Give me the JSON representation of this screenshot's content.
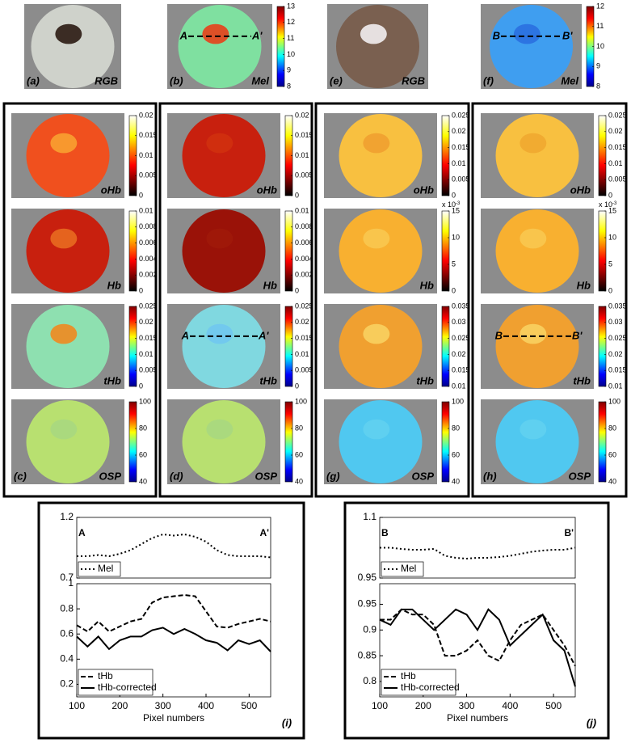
{
  "top_images": [
    {
      "label": "(a)",
      "channel": "RGB",
      "fill": "#cfd2cb",
      "spot": "#2a1a12"
    },
    {
      "label": "(b)",
      "channel": "Mel",
      "fill": "#7fe0a0",
      "spot": "#e8401a",
      "colormap": "jet",
      "ticks": [
        13,
        12,
        11,
        10,
        9,
        8
      ],
      "line": [
        "A",
        "A'"
      ]
    },
    {
      "label": "(e)",
      "channel": "RGB",
      "fill": "#7a6050",
      "spot": "#f2eef0"
    },
    {
      "label": "(f)",
      "channel": "Mel",
      "fill": "#3f9ef0",
      "spot": "#2a6fe0",
      "colormap": "jet",
      "ticks": [
        12,
        11,
        10,
        9,
        8
      ],
      "line": [
        "B",
        "B'"
      ]
    }
  ],
  "groups": [
    {
      "label": "(c)",
      "maps": [
        {
          "channel": "oHb",
          "fill": "#f0501e",
          "spot": "#f8a030",
          "colormap": "hot",
          "ticks": [
            0.02,
            0.015,
            0.01,
            0.005,
            0
          ]
        },
        {
          "channel": "Hb",
          "fill": "#c8200e",
          "spot": "#e86a20",
          "colormap": "hot",
          "ticks": [
            0.01,
            0.008,
            0.006,
            0.004,
            0.002,
            0
          ]
        },
        {
          "channel": "tHb",
          "fill": "#8ee0b0",
          "spot": "#f08a20",
          "colormap": "jet",
          "ticks": [
            0.025,
            0.02,
            0.015,
            0.01,
            0.005,
            0
          ]
        },
        {
          "channel": "OSP",
          "fill": "#b8e070",
          "spot": "#a8d880",
          "colormap": "jet",
          "ticks": [
            100,
            80,
            60,
            40
          ]
        }
      ]
    },
    {
      "label": "(d)",
      "maps": [
        {
          "channel": "oHb",
          "fill": "#c8200e",
          "spot": "#d0300e",
          "colormap": "hot",
          "ticks": [
            0.02,
            0.015,
            0.01,
            0.005,
            0
          ]
        },
        {
          "channel": "Hb",
          "fill": "#9a1208",
          "spot": "#a01a0a",
          "colormap": "hot",
          "ticks": [
            0.01,
            0.008,
            0.006,
            0.004,
            0.002,
            0
          ]
        },
        {
          "channel": "tHb",
          "fill": "#80d8e0",
          "spot": "#70c8f0",
          "colormap": "jet",
          "ticks": [
            0.025,
            0.02,
            0.015,
            0.01,
            0.005,
            0
          ],
          "line": [
            "A",
            "A'"
          ]
        },
        {
          "channel": "OSP",
          "fill": "#b8e070",
          "spot": "#a8d880",
          "colormap": "jet",
          "ticks": [
            100,
            80,
            60,
            40
          ]
        }
      ]
    },
    {
      "label": "(g)",
      "maps": [
        {
          "channel": "oHb",
          "fill": "#f8c040",
          "spot": "#f0a030",
          "colormap": "hot",
          "ticks": [
            0.025,
            0.02,
            0.015,
            0.01,
            0.005,
            0
          ]
        },
        {
          "channel": "Hb",
          "fill": "#f8b030",
          "spot": "#f8c850",
          "colormap": "hot",
          "ticks": [
            15,
            10,
            5,
            0
          ],
          "scale": {
            "base": "x 10",
            "exponent": "-3"
          }
        },
        {
          "channel": "tHb",
          "fill": "#f0a030",
          "spot": "#f8d060",
          "colormap": "jet",
          "ticks": [
            0.035,
            0.03,
            0.025,
            0.02,
            0.015,
            0.01
          ]
        },
        {
          "channel": "OSP",
          "fill": "#50c8f0",
          "spot": "#60d0f0",
          "colormap": "jet",
          "ticks": [
            100,
            80,
            60,
            40
          ]
        }
      ]
    },
    {
      "label": "(h)",
      "maps": [
        {
          "channel": "oHb",
          "fill": "#f8c040",
          "spot": "#f0a830",
          "colormap": "hot",
          "ticks": [
            0.025,
            0.02,
            0.015,
            0.01,
            0.005,
            0
          ]
        },
        {
          "channel": "Hb",
          "fill": "#f8b030",
          "spot": "#f8c850",
          "colormap": "hot",
          "ticks": [
            15,
            10,
            5,
            0
          ],
          "scale": {
            "base": "x 10",
            "exponent": "-3"
          }
        },
        {
          "channel": "tHb",
          "fill": "#f0a030",
          "spot": "#f8d060",
          "colormap": "jet",
          "ticks": [
            0.035,
            0.03,
            0.025,
            0.02,
            0.015,
            0.01
          ],
          "line": [
            "B",
            "B'"
          ]
        },
        {
          "channel": "OSP",
          "fill": "#50c8f0",
          "spot": "#60d0f0",
          "colormap": "jet",
          "ticks": [
            100,
            80,
            60,
            40
          ]
        }
      ]
    }
  ],
  "chart_data": [
    {
      "type": "line",
      "x": [
        100,
        125,
        150,
        175,
        200,
        225,
        250,
        275,
        300,
        325,
        350,
        375,
        400,
        425,
        450,
        475,
        500,
        525,
        550
      ],
      "xlim": [
        100,
        550
      ],
      "ylim": [
        0.7,
        1.2
      ],
      "yticks": [
        0.7,
        1.2
      ],
      "legend": "lower left",
      "annotations": [
        "A",
        "A'"
      ],
      "series": [
        {
          "name": "Mel",
          "color": "#000000",
          "style": "dotted",
          "values": [
            0.88,
            0.88,
            0.89,
            0.88,
            0.9,
            0.93,
            0.98,
            1.03,
            1.06,
            1.05,
            1.06,
            1.04,
            1.0,
            0.93,
            0.89,
            0.88,
            0.88,
            0.88,
            0.87
          ]
        }
      ]
    },
    {
      "type": "line",
      "x": [
        100,
        125,
        150,
        175,
        200,
        225,
        250,
        275,
        300,
        325,
        350,
        375,
        400,
        425,
        450,
        475,
        500,
        525,
        550
      ],
      "xlim": [
        100,
        550
      ],
      "ylim": [
        0.1,
        1
      ],
      "yticks": [
        0.2,
        0.4,
        0.6,
        0.8,
        1
      ],
      "xticks": [
        100,
        200,
        300,
        400,
        500
      ],
      "xlabel": "Pixel numbers",
      "panel_label": "(i)",
      "legend": "lower left",
      "series": [
        {
          "name": "tHb",
          "color": "#000000",
          "style": "dashed",
          "values": [
            0.67,
            0.62,
            0.7,
            0.62,
            0.66,
            0.7,
            0.72,
            0.85,
            0.89,
            0.9,
            0.91,
            0.9,
            0.78,
            0.66,
            0.65,
            0.68,
            0.7,
            0.72,
            0.7
          ]
        },
        {
          "name": "tHb-corrected",
          "color": "#000000",
          "style": "solid",
          "values": [
            0.58,
            0.5,
            0.58,
            0.48,
            0.55,
            0.58,
            0.58,
            0.63,
            0.65,
            0.6,
            0.64,
            0.6,
            0.55,
            0.53,
            0.47,
            0.55,
            0.52,
            0.55,
            0.46
          ]
        }
      ]
    },
    {
      "type": "line",
      "x": [
        100,
        125,
        150,
        175,
        200,
        225,
        250,
        275,
        300,
        325,
        350,
        375,
        400,
        425,
        450,
        475,
        500,
        525,
        550
      ],
      "xlim": [
        100,
        550
      ],
      "ylim": [
        0.95,
        1.1
      ],
      "yticks": [
        0.95,
        1.1
      ],
      "legend": "lower left",
      "annotations": [
        "B",
        "B'"
      ],
      "series": [
        {
          "name": "Mel",
          "color": "#000000",
          "style": "dotted",
          "values": [
            1.025,
            1.025,
            1.022,
            1.02,
            1.02,
            1.022,
            1.005,
            1.0,
            0.998,
            1.0,
            1.0,
            1.002,
            1.005,
            1.01,
            1.015,
            1.018,
            1.02,
            1.02,
            1.025
          ]
        }
      ]
    },
    {
      "type": "line",
      "x": [
        100,
        125,
        150,
        175,
        200,
        225,
        250,
        275,
        300,
        325,
        350,
        375,
        400,
        425,
        450,
        475,
        500,
        525,
        550
      ],
      "xlim": [
        100,
        550
      ],
      "ylim": [
        0.77,
        0.99
      ],
      "yticks": [
        0.8,
        0.85,
        0.9,
        0.95
      ],
      "xticks": [
        100,
        200,
        300,
        400,
        500
      ],
      "xlabel": "Pixel numbers",
      "panel_label": "(j)",
      "legend": "lower left",
      "series": [
        {
          "name": "tHb",
          "color": "#000000",
          "style": "dashed",
          "values": [
            0.92,
            0.92,
            0.94,
            0.93,
            0.93,
            0.91,
            0.85,
            0.85,
            0.86,
            0.88,
            0.85,
            0.84,
            0.88,
            0.91,
            0.92,
            0.93,
            0.9,
            0.87,
            0.83
          ]
        },
        {
          "name": "tHb-corrected",
          "color": "#000000",
          "style": "solid",
          "values": [
            0.92,
            0.91,
            0.94,
            0.94,
            0.92,
            0.9,
            0.92,
            0.94,
            0.93,
            0.9,
            0.94,
            0.92,
            0.87,
            0.89,
            0.91,
            0.93,
            0.88,
            0.86,
            0.79
          ]
        }
      ]
    }
  ]
}
